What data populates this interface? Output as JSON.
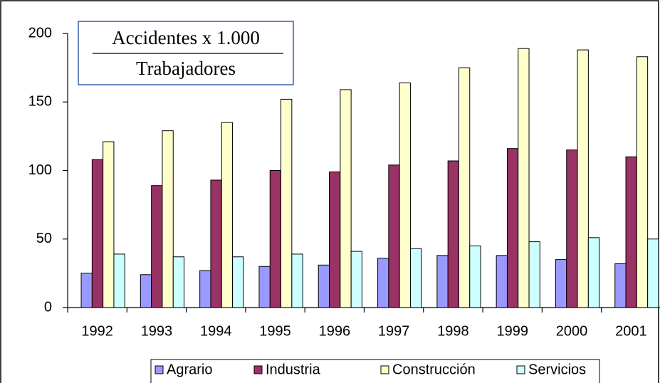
{
  "chart_data": {
    "type": "bar",
    "title": "Accidentes x 1.000",
    "subtitle": "Trabajadores",
    "categories": [
      "1992",
      "1993",
      "1994",
      "1995",
      "1996",
      "1997",
      "1998",
      "1999",
      "2000",
      "2001"
    ],
    "series": [
      {
        "name": "Agrario",
        "color": "#9999ff",
        "values": [
          25,
          24,
          27,
          30,
          31,
          36,
          38,
          38,
          35,
          32
        ]
      },
      {
        "name": "Industria",
        "color": "#993366",
        "values": [
          108,
          89,
          93,
          100,
          99,
          104,
          107,
          116,
          115,
          110
        ]
      },
      {
        "name": "Construcción",
        "color": "#ffffcc",
        "values": [
          121,
          129,
          135,
          152,
          159,
          164,
          175,
          189,
          188,
          183
        ]
      },
      {
        "name": "Servicios",
        "color": "#ccffff",
        "values": [
          39,
          37,
          37,
          39,
          41,
          43,
          45,
          48,
          51,
          50
        ]
      }
    ],
    "ylim": [
      0,
      200
    ],
    "yticks": [
      0,
      50,
      100,
      150,
      200
    ],
    "grid": false,
    "legend": "bottom"
  }
}
